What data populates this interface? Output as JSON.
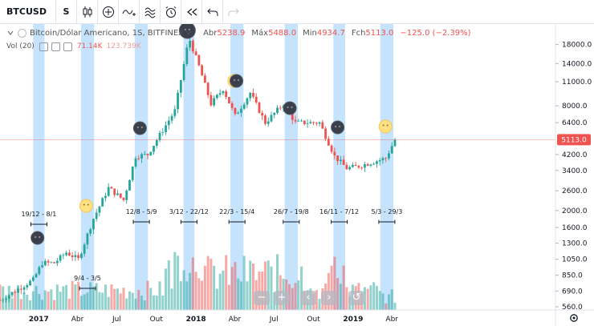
{
  "toolbar": {
    "symbol": "BTCUSD",
    "timeframe": "S"
  },
  "legend": {
    "title": "Bitcoin/Dólar Americano, 1S, BITFINEX",
    "open_label": "Abr",
    "open": "5238.9",
    "high_label": "Máx",
    "high": "5488.0",
    "low_label": "Min",
    "low": "4934.7",
    "close_label": "Fch",
    "close": "5113.0",
    "change": "−125.0 (−2.39%)"
  },
  "volume_legend": {
    "label": "Vol (20)",
    "value1": "71.14K",
    "value2": "123.739K"
  },
  "colors": {
    "up": "#26a69a",
    "down": "#ef5350",
    "highlight": "#bbdefb",
    "price_label": "#ef5350"
  },
  "chart_data": {
    "type": "candlestick",
    "y_axis": {
      "scale": "log",
      "ticks": [
        18000.0,
        14000.0,
        11000.0,
        8000.0,
        6400.0,
        5113.0,
        4200.0,
        3400.0,
        2600.0,
        2000.0,
        1600.0,
        1300.0,
        1050.0,
        850.0,
        690.0,
        560.0
      ],
      "tick_labels": [
        "18000.0",
        "14000.0",
        "11000.0",
        "8000.0",
        "6400.0",
        "5113.0",
        "4200.0",
        "3400.0",
        "2600.0",
        "2000.0",
        "1600.0",
        "1300.0",
        "1050.0",
        "850.0",
        "690.0",
        "560.0"
      ],
      "current_price": "5113.0"
    },
    "x_axis": {
      "tick_labels": [
        "2017",
        "Abr",
        "Jul",
        "Out",
        "2018",
        "Abr",
        "Jul",
        "Out",
        "2019",
        "Abr"
      ]
    },
    "close_path": [
      {
        "date": "2016-10-03",
        "close": 610
      },
      {
        "date": "2016-12-19",
        "close": 800
      },
      {
        "date": "2017-01-09",
        "close": 1000
      },
      {
        "date": "2017-02-06",
        "close": 1000
      },
      {
        "date": "2017-03-06",
        "close": 1150
      },
      {
        "date": "2017-04-03",
        "close": 1050
      },
      {
        "date": "2017-05-08",
        "close": 1800
      },
      {
        "date": "2017-06-12",
        "close": 2700
      },
      {
        "date": "2017-07-17",
        "close": 2300
      },
      {
        "date": "2017-08-14",
        "close": 4100
      },
      {
        "date": "2017-09-11",
        "close": 4200
      },
      {
        "date": "2017-10-16",
        "close": 5800
      },
      {
        "date": "2017-11-13",
        "close": 7500
      },
      {
        "date": "2017-12-11",
        "close": 17000
      },
      {
        "date": "2017-12-18",
        "close": 19000
      },
      {
        "date": "2018-01-08",
        "close": 13500
      },
      {
        "date": "2018-02-05",
        "close": 8200
      },
      {
        "date": "2018-03-05",
        "close": 10000
      },
      {
        "date": "2018-04-02",
        "close": 7000
      },
      {
        "date": "2018-05-07",
        "close": 9500
      },
      {
        "date": "2018-06-11",
        "close": 6400
      },
      {
        "date": "2018-07-23",
        "close": 8200
      },
      {
        "date": "2018-08-20",
        "close": 6400
      },
      {
        "date": "2018-10-15",
        "close": 6400
      },
      {
        "date": "2018-11-19",
        "close": 4100
      },
      {
        "date": "2018-12-17",
        "close": 3500
      },
      {
        "date": "2019-01-14",
        "close": 3600
      },
      {
        "date": "2019-03-18",
        "close": 4000
      },
      {
        "date": "2019-04-08",
        "close": 5113
      }
    ],
    "highlight_periods": [
      {
        "label": "19/12 - 8/1",
        "start": "2016-12-19",
        "end": "2017-01-08"
      },
      {
        "label": "9/4 - 3/5",
        "start": "2017-04-09",
        "end": "2017-05-03"
      },
      {
        "label": "12/8 - 5/9",
        "start": "2017-08-12",
        "end": "2017-09-05"
      },
      {
        "label": "3/12 - 22/12",
        "start": "2017-12-03",
        "end": "2017-12-22"
      },
      {
        "label": "22/3 - 15/4",
        "start": "2018-03-22",
        "end": "2018-04-15"
      },
      {
        "label": "26/7 - 19/8",
        "start": "2018-07-26",
        "end": "2018-08-19"
      },
      {
        "label": "16/11 - 7/12",
        "start": "2018-11-16",
        "end": "2018-12-07"
      },
      {
        "label": "5/3 - 29/3",
        "start": "2019-03-05",
        "end": "2019-03-29"
      }
    ],
    "markers": [
      {
        "type": "moon",
        "date": "2016-12-29"
      },
      {
        "type": "sun",
        "date": "2017-04-21"
      },
      {
        "type": "moon",
        "date": "2017-08-24"
      },
      {
        "type": "moon",
        "date": "2017-12-12"
      },
      {
        "type": "sun",
        "date": "2018-03-31"
      },
      {
        "type": "moon",
        "date": "2018-04-05"
      },
      {
        "type": "moon",
        "date": "2018-08-07"
      },
      {
        "type": "moon",
        "date": "2018-11-26"
      },
      {
        "type": "sun",
        "date": "2019-03-17"
      }
    ]
  },
  "controls": {
    "zoom_out": "−",
    "zoom_in": "+",
    "prev": "‹",
    "next": "›",
    "reset": "↺"
  }
}
